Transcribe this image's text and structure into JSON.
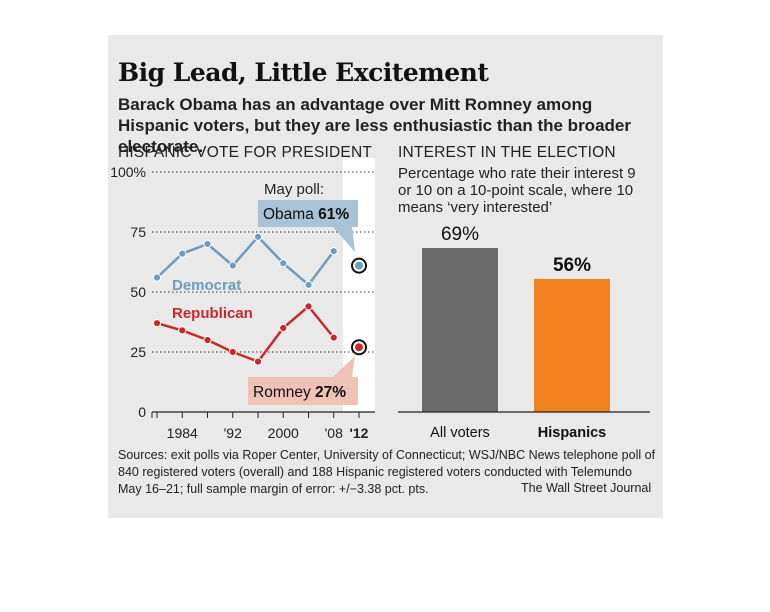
{
  "title": "Big Lead, Little Excitement",
  "subtitle": "Barack Obama has an advantage over Mitt Romney among Hispanic voters, but they are less enthusiastic than the broader electorate.",
  "source": "Sources: exit polls via Roper Center, University of Connecticut; WSJ/NBC News telephone poll of 840 registered voters (overall) and 188 Hispanic registered voters conducted with Telemundo May 16–21; full sample margin of error: +/−3.38 pct. pts.",
  "credit": "The Wall Street Journal",
  "colors": {
    "democrat": "#6f9bbd",
    "republican": "#c8282b",
    "voters_bar": "#6b6b6b",
    "hispanics_bar": "#f58220",
    "obama_box": "#a9c2d6",
    "romney_box": "#eec3b6"
  },
  "chart_data": [
    {
      "type": "line",
      "title": "HISPANIC VOTE FOR PRESIDENT",
      "ylim": [
        0,
        100
      ],
      "y_ticks": [
        "100%",
        "75",
        "50",
        "25",
        "0"
      ],
      "x_ticks": [
        "1984",
        "'92",
        "2000",
        "'08",
        "'12"
      ],
      "x": [
        1980,
        1984,
        1988,
        1992,
        1996,
        2000,
        2004,
        2008
      ],
      "series": [
        {
          "name": "Democrat",
          "values": [
            56,
            66,
            70,
            61,
            73,
            62,
            53,
            67
          ]
        },
        {
          "name": "Republican",
          "values": [
            37,
            34,
            30,
            25,
            21,
            35,
            44,
            31
          ]
        }
      ],
      "annotations": {
        "may_poll_label": "May poll:",
        "obama_label": "Obama ",
        "obama_value": "61%",
        "romney_label": "Romney ",
        "romney_value": "27%",
        "poll_year": 2012,
        "poll_obama": 61,
        "poll_romney": 27
      },
      "grid": true
    },
    {
      "type": "bar",
      "title": "INTEREST IN THE ELECTION",
      "description": "Percentage who rate their interest 9 or 10 on a 10-point scale, where 10 means ‘very interested’",
      "categories": [
        "All voters",
        "Hispanics"
      ],
      "values": [
        69,
        56
      ],
      "value_labels": [
        "69%",
        "56%"
      ],
      "ylim": [
        0,
        100
      ]
    }
  ]
}
